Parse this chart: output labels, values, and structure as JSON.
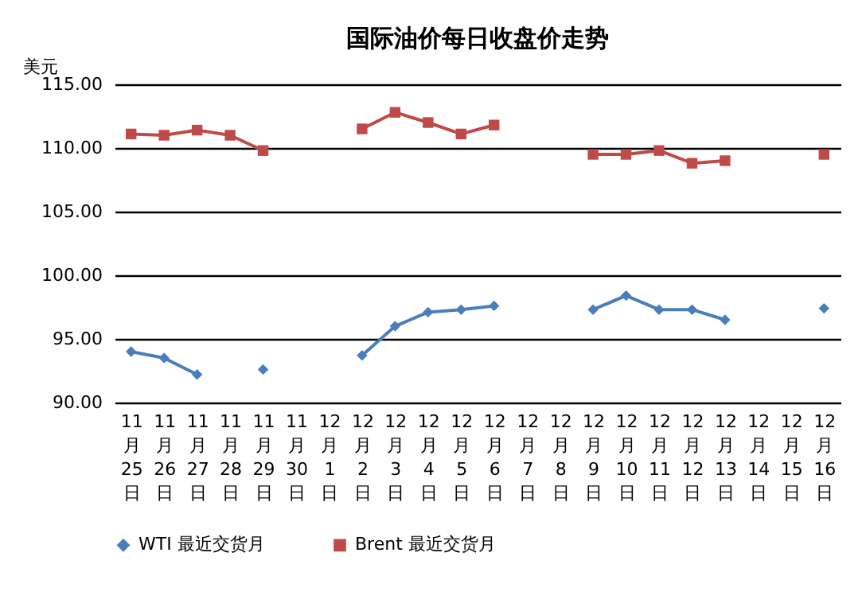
{
  "chart_data": {
    "type": "line",
    "title": "国际油价每日收盘价走势",
    "ylabel": "美元",
    "categories": [
      "11月25日",
      "11月26日",
      "11月27日",
      "11月28日",
      "11月29日",
      "11月30日",
      "12月1日",
      "12月2日",
      "12月3日",
      "12月4日",
      "12月5日",
      "12月6日",
      "12月7日",
      "12月8日",
      "12月9日",
      "12月10日",
      "12月11日",
      "12月12日",
      "12月13日",
      "12月14日",
      "12月15日",
      "12月16日"
    ],
    "series": [
      {
        "name": "WTI 最近交货月",
        "color": "#4a7ebb",
        "marker": "diamond",
        "values": [
          94.0,
          93.5,
          92.2,
          null,
          92.6,
          null,
          null,
          93.7,
          96.0,
          97.1,
          97.3,
          97.6,
          null,
          null,
          97.3,
          98.4,
          97.3,
          97.3,
          96.5,
          null,
          null,
          97.4
        ]
      },
      {
        "name": "Brent 最近交货月",
        "color": "#be4b48",
        "marker": "square",
        "values": [
          111.1,
          111.0,
          111.4,
          111.0,
          109.8,
          null,
          null,
          111.5,
          112.8,
          112.0,
          111.1,
          111.8,
          null,
          null,
          109.5,
          109.5,
          109.8,
          108.8,
          109.0,
          null,
          null,
          109.5
        ]
      }
    ],
    "ylim": [
      90,
      115
    ],
    "yticks": [
      {
        "value": 90,
        "label": "90.00"
      },
      {
        "value": 95,
        "label": "95.00"
      },
      {
        "value": 100,
        "label": "100.00"
      },
      {
        "value": 105,
        "label": "105.00"
      },
      {
        "value": 110,
        "label": "110.00"
      },
      {
        "value": 115,
        "label": "115.00"
      }
    ],
    "grid": "y",
    "legend": "bottom"
  }
}
